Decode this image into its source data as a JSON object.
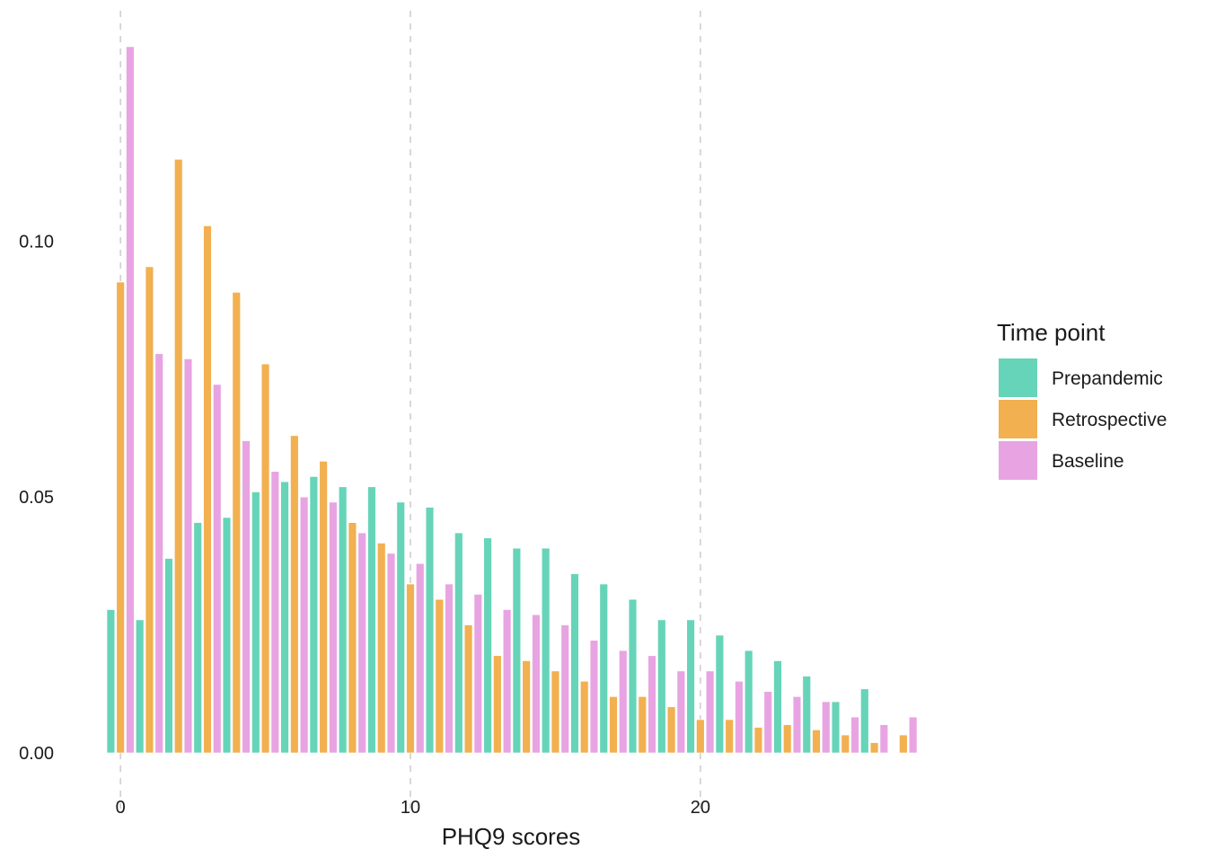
{
  "chart_data": {
    "type": "bar",
    "title": "",
    "xlabel": "PHQ9 scores",
    "ylabel": "",
    "x": [
      0,
      1,
      2,
      3,
      4,
      5,
      6,
      7,
      8,
      9,
      10,
      11,
      12,
      13,
      14,
      15,
      16,
      17,
      18,
      19,
      20,
      21,
      22,
      23,
      24,
      25,
      26,
      27
    ],
    "xlim": [
      -0.5,
      27.5
    ],
    "ylim": [
      0,
      0.138
    ],
    "x_ticks": [
      "0",
      "10",
      "20"
    ],
    "x_tick_values": [
      0,
      10,
      20
    ],
    "y_ticks": [
      "0.00",
      "0.05",
      "0.10"
    ],
    "y_tick_values": [
      0,
      0.05,
      0.1
    ],
    "grid": "vertical major lines, dashed",
    "legend": {
      "title": "Time point",
      "position": "right"
    },
    "series": [
      {
        "name": "Prepandemic",
        "color": "#66d4b8",
        "values": [
          0.028,
          0.026,
          0.038,
          0.045,
          0.046,
          0.051,
          0.053,
          0.054,
          0.052,
          0.052,
          0.049,
          0.048,
          0.043,
          0.042,
          0.04,
          0.04,
          0.035,
          0.033,
          0.03,
          0.026,
          0.026,
          0.023,
          0.02,
          0.018,
          0.015,
          0.01,
          0.0125,
          0.0
        ]
      },
      {
        "name": "Retrospective",
        "color": "#f2b050",
        "values": [
          0.092,
          0.095,
          0.116,
          0.103,
          0.09,
          0.076,
          0.062,
          0.057,
          0.045,
          0.041,
          0.033,
          0.03,
          0.025,
          0.019,
          0.018,
          0.016,
          0.014,
          0.011,
          0.011,
          0.009,
          0.0065,
          0.0065,
          0.005,
          0.0055,
          0.0045,
          0.0035,
          0.002,
          0.0035
        ]
      },
      {
        "name": "Baseline",
        "color": "#e8a4e2",
        "values": [
          0.138,
          0.078,
          0.077,
          0.072,
          0.061,
          0.055,
          0.05,
          0.049,
          0.043,
          0.039,
          0.037,
          0.033,
          0.031,
          0.028,
          0.027,
          0.025,
          0.022,
          0.02,
          0.019,
          0.016,
          0.016,
          0.014,
          0.012,
          0.011,
          0.01,
          0.007,
          0.0055,
          0.007
        ]
      }
    ]
  }
}
